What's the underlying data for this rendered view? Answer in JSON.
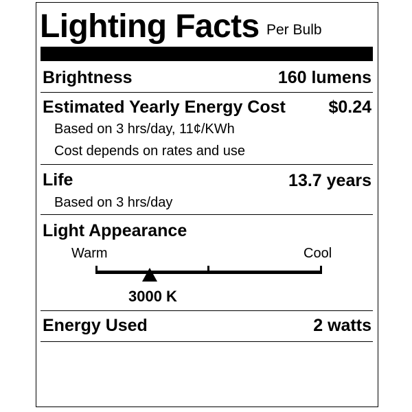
{
  "header": {
    "title": "Lighting Facts",
    "subtitle": "Per Bulb"
  },
  "brightness": {
    "label": "Brightness",
    "value": "160 lumens"
  },
  "energy_cost": {
    "label": "Estimated Yearly Energy Cost",
    "value": "$0.24",
    "note1": "Based on 3 hrs/day, 11¢/KWh",
    "note2": "Cost depends on rates and use"
  },
  "life": {
    "label": "Life",
    "value": "13.7 years",
    "note": "Based on 3 hrs/day"
  },
  "light_appearance": {
    "label": "Light Appearance",
    "warm_label": "Warm",
    "cool_label": "Cool",
    "value": "3000 K",
    "scale_min_k": 2700,
    "scale_max_k": 6500,
    "marker_position_fraction": 0.24
  },
  "energy_used": {
    "label": "Energy Used",
    "value": "2 watts"
  }
}
